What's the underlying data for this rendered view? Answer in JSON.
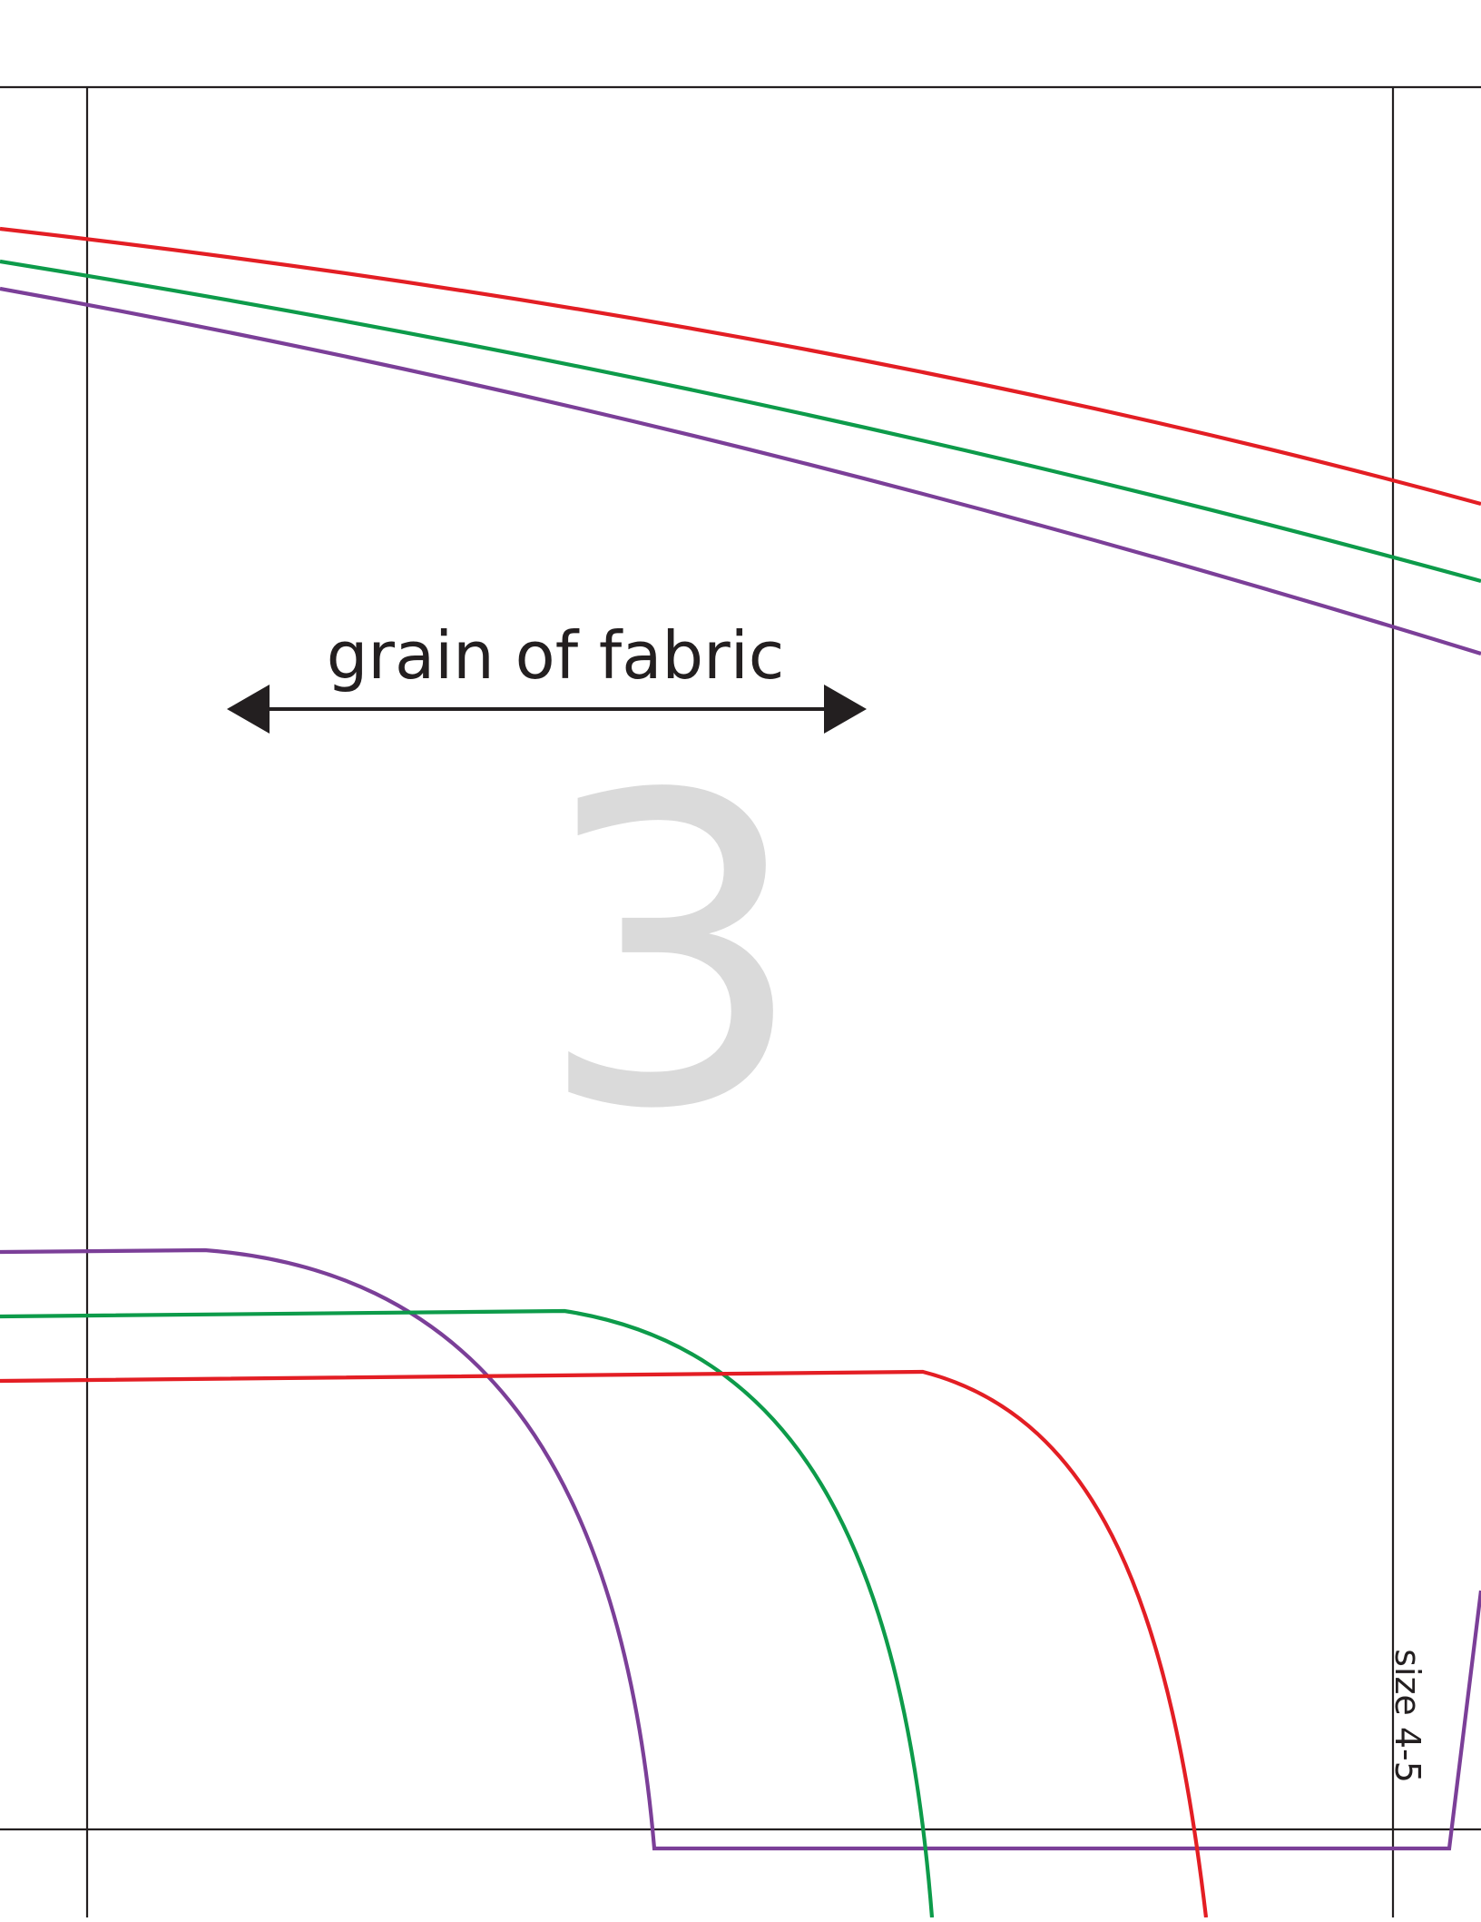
{
  "grain_label": "grain of fabric",
  "page_number": "3",
  "size_label": "size 4-5",
  "colors": {
    "red": "#e31e24",
    "green": "#0d9b4a",
    "purple": "#7b3f98",
    "trim": "#231f20",
    "page_number": "#dadada"
  },
  "icons": {
    "grain_arrow": "double-headed-arrow"
  }
}
